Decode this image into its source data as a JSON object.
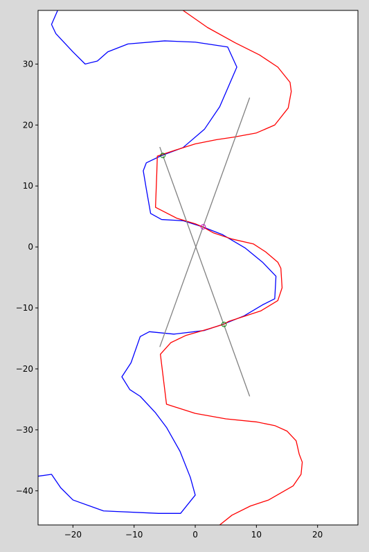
{
  "chart_data": {
    "type": "line",
    "title": "",
    "xlabel": "",
    "ylabel": "",
    "xlim": [
      -25.7,
      26.6
    ],
    "ylim": [
      -45.6,
      38.8
    ],
    "grid": false,
    "legend": "none",
    "x_ticks": [
      -20,
      -10,
      0,
      10,
      20
    ],
    "y_ticks": [
      -40,
      -30,
      -20,
      -10,
      0,
      10,
      20,
      30
    ],
    "x_tick_labels": [
      "−20",
      "−10",
      "0",
      "10",
      "20"
    ],
    "y_tick_labels": [
      "−40",
      "−30",
      "−20",
      "−10",
      "0",
      "10",
      "20",
      "30"
    ],
    "colors": {
      "blue": "#0000ff",
      "red": "#ff0000",
      "gray": "#808080",
      "green": "#008000",
      "magenta": "#bf00bf",
      "plot_bg": "#ffffff",
      "fig_bg": "#d9d9d9"
    },
    "series": [
      {
        "color": "#0000ff",
        "points": [
          [
            -22.5,
            38.8
          ],
          [
            -23.5,
            36.5
          ],
          [
            -22.8,
            35
          ],
          [
            -20,
            32
          ],
          [
            -18,
            30
          ],
          [
            -16,
            30.5
          ],
          [
            -14.3,
            32
          ],
          [
            -11,
            33.3
          ],
          [
            -5,
            33.8
          ],
          [
            0,
            33.6
          ],
          [
            5.3,
            32.8
          ],
          [
            6.8,
            29.5
          ],
          [
            4,
            23
          ],
          [
            1.5,
            19.3
          ],
          [
            -2,
            16.3
          ],
          [
            -5.5,
            15
          ],
          [
            -8,
            13.8
          ],
          [
            -8.5,
            12.5
          ],
          [
            -8,
            9.5
          ],
          [
            -7.3,
            5.5
          ],
          [
            -5.5,
            4.5
          ],
          [
            -2,
            4.3
          ],
          [
            1.2,
            3.3
          ],
          [
            4.5,
            2
          ],
          [
            8.2,
            -0.2
          ],
          [
            11,
            -2.5
          ],
          [
            13.2,
            -4.8
          ],
          [
            13,
            -8.5
          ],
          [
            11,
            -9.5
          ],
          [
            8,
            -11.3
          ],
          [
            4.5,
            -12.7
          ],
          [
            1.5,
            -13.7
          ],
          [
            -3.5,
            -14.3
          ],
          [
            -7.5,
            -13.9
          ],
          [
            -9,
            -14.7
          ],
          [
            -10.5,
            -19
          ],
          [
            -12,
            -21.3
          ],
          [
            -10.7,
            -23.4
          ],
          [
            -9,
            -24.5
          ],
          [
            -6.5,
            -27.2
          ],
          [
            -4.7,
            -29.6
          ],
          [
            -2.5,
            -33.5
          ],
          [
            -0.8,
            -37.8
          ],
          [
            0,
            -40.7
          ],
          [
            -2.4,
            -43.7
          ],
          [
            -6,
            -43.7
          ],
          [
            -15,
            -43.3
          ],
          [
            -20,
            -41.5
          ],
          [
            -22,
            -39.5
          ],
          [
            -23.5,
            -37.3
          ],
          [
            -25.7,
            -37.6
          ]
        ]
      },
      {
        "color": "#ff0000",
        "points": [
          [
            -2,
            38.8
          ],
          [
            2,
            36
          ],
          [
            6.5,
            33.5
          ],
          [
            10.5,
            31.5
          ],
          [
            13.5,
            29.5
          ],
          [
            15.5,
            27
          ],
          [
            15.7,
            25.5
          ],
          [
            15.2,
            22.8
          ],
          [
            13,
            20
          ],
          [
            10,
            18.7
          ],
          [
            6.2,
            18
          ],
          [
            3.5,
            17.6
          ],
          [
            0,
            16.9
          ],
          [
            -3.5,
            15.8
          ],
          [
            -6.2,
            14.9
          ],
          [
            -6.3,
            11.8
          ],
          [
            -6.5,
            6.5
          ],
          [
            -3,
            4.7
          ],
          [
            0,
            3.8
          ],
          [
            1.2,
            3.3
          ],
          [
            3,
            2.3
          ],
          [
            6,
            1.3
          ],
          [
            9.5,
            0.5
          ],
          [
            11.5,
            -0.8
          ],
          [
            13.5,
            -2.5
          ],
          [
            14,
            -3.5
          ],
          [
            14.2,
            -6.7
          ],
          [
            13.5,
            -8.8
          ],
          [
            10.7,
            -10.5
          ],
          [
            5.5,
            -12.2
          ],
          [
            4.6,
            -12.7
          ],
          [
            2,
            -13.5
          ],
          [
            -1.5,
            -14.5
          ],
          [
            -4,
            -15.7
          ],
          [
            -5.7,
            -17.6
          ],
          [
            -4.7,
            -25.8
          ],
          [
            0,
            -27.3
          ],
          [
            5,
            -28.2
          ],
          [
            10,
            -28.7
          ],
          [
            13,
            -29.3
          ],
          [
            15,
            -30.2
          ],
          [
            16.5,
            -31.8
          ],
          [
            17,
            -34
          ],
          [
            17.5,
            -35.3
          ],
          [
            17.3,
            -37.3
          ],
          [
            16,
            -39.2
          ],
          [
            12,
            -41.5
          ],
          [
            9,
            -42.5
          ],
          [
            6,
            -44
          ],
          [
            4,
            -45.6
          ]
        ]
      },
      {
        "color": "#808080",
        "points": [
          [
            8.9,
            24.5
          ],
          [
            -5.8,
            -16.4
          ]
        ]
      },
      {
        "color": "#808080",
        "points": [
          [
            -5.8,
            16.4
          ],
          [
            8.9,
            -24.5
          ]
        ]
      }
    ],
    "markers": [
      {
        "x": -5.3,
        "y": 15,
        "color": "#008000",
        "style": "open-circle"
      },
      {
        "x": 1.3,
        "y": 3.3,
        "color": "#bf00bf",
        "style": "open-circle"
      },
      {
        "x": 4.7,
        "y": -12.7,
        "color": "#008000",
        "style": "open-circle"
      }
    ]
  }
}
